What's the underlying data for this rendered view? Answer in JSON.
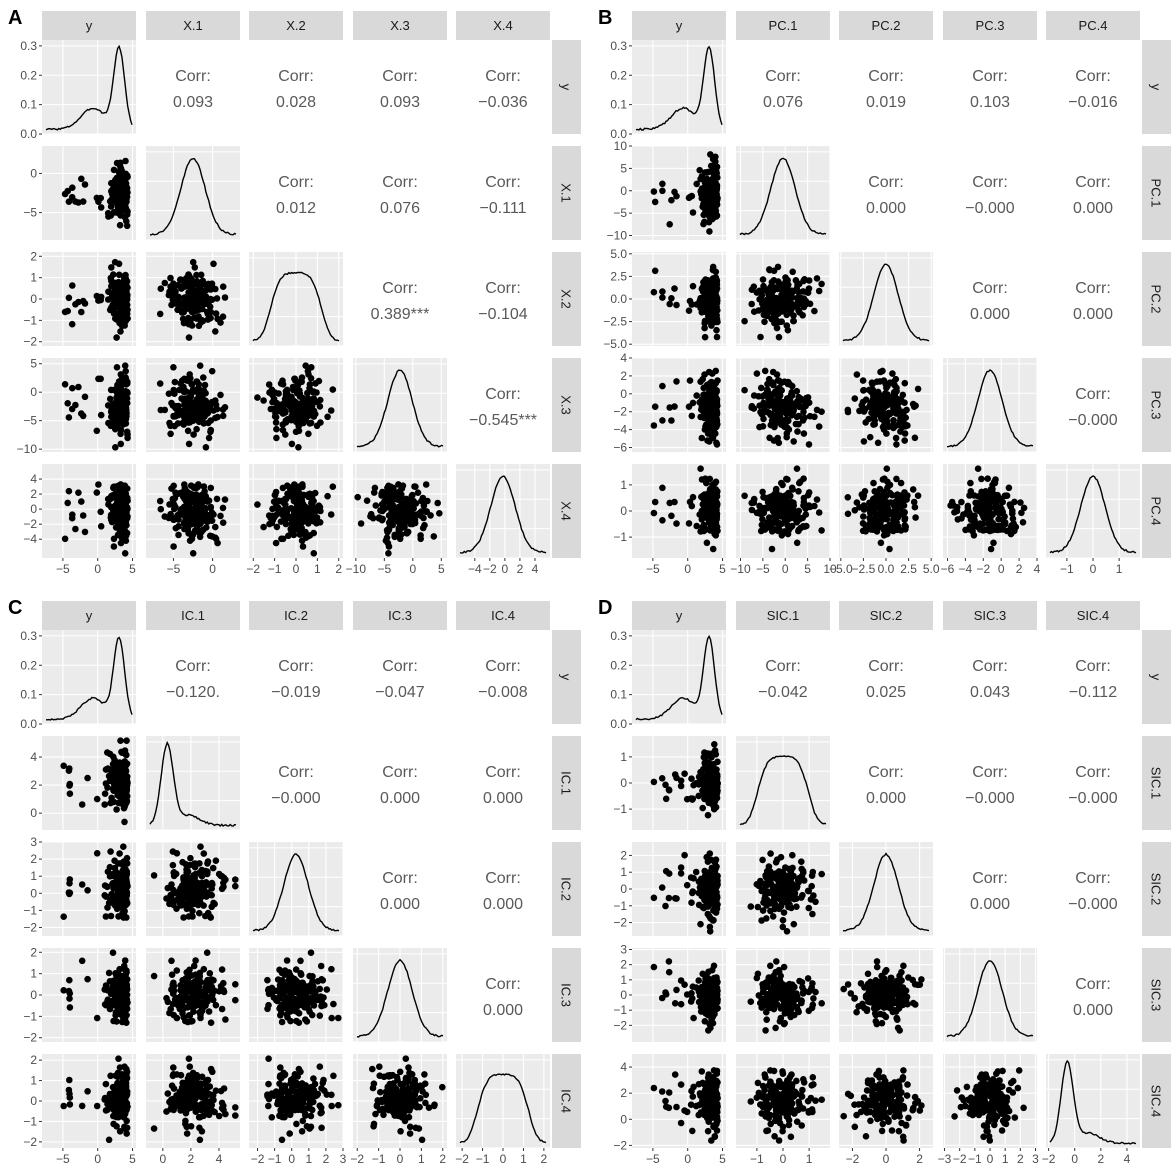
{
  "figure": {
    "background": "#ffffff",
    "panel_bg": "#ebebeb",
    "strip_bg": "#d9d9d9",
    "grid_color": "#ffffff",
    "point_color": "#000000",
    "line_color": "#000000",
    "corr_text_color": "#595959"
  },
  "chart_data": [
    {
      "type": "pairs",
      "panel_label": "A",
      "variables": [
        "y",
        "X.1",
        "X.2",
        "X.3",
        "X.4"
      ],
      "correlations": [
        [
          "",
          "0.093",
          "0.028",
          "0.093",
          "−0.036"
        ],
        [
          "",
          "",
          "0.012",
          "0.076",
          "−0.111"
        ],
        [
          "",
          "",
          "",
          "0.389***",
          "−0.104"
        ],
        [
          "",
          "",
          "",
          "",
          "−0.545***"
        ]
      ],
      "corr_label": "Corr:",
      "x_ticks": [
        [
          "−5",
          "0",
          "5"
        ],
        [
          "−5",
          "0"
        ],
        [
          "−2",
          "−1",
          "0",
          "1",
          "2"
        ],
        [
          "−10",
          "−5",
          "0",
          "5"
        ],
        [
          "−4",
          "−2",
          "0",
          "2",
          "4"
        ]
      ],
      "y_ticks": [
        [
          "0.0",
          "0.1",
          "0.2",
          "0.3"
        ],
        [
          "−5",
          "0"
        ],
        [
          "−2",
          "−1",
          "0",
          "1",
          "2"
        ],
        [
          "−10",
          "−5",
          "0",
          "5"
        ],
        [
          "−4",
          "−2",
          "0",
          "2",
          "4"
        ]
      ],
      "ranges": [
        [
          -8,
          5.5
        ],
        [
          -8.5,
          3.5
        ],
        [
          -2.2,
          2.2
        ],
        [
          -10.5,
          6
        ],
        [
          -6.5,
          6
        ]
      ],
      "diag_ylim": [
        0,
        0.32
      ]
    },
    {
      "type": "pairs",
      "panel_label": "B",
      "variables": [
        "y",
        "PC.1",
        "PC.2",
        "PC.3",
        "PC.4"
      ],
      "correlations": [
        [
          "",
          "0.076",
          "0.019",
          "0.103",
          "−0.016"
        ],
        [
          "",
          "",
          "0.000",
          "−0.000",
          "0.000"
        ],
        [
          "",
          "",
          "",
          "0.000",
          "0.000"
        ],
        [
          "",
          "",
          "",
          "",
          "−0.000"
        ]
      ],
      "corr_label": "Corr:",
      "x_ticks": [
        [
          "−5",
          "0",
          "5"
        ],
        [
          "−10",
          "−5",
          "0",
          "5",
          "10"
        ],
        [
          "−5.0",
          "−2.5",
          "0.0",
          "2.5",
          "5.0"
        ],
        [
          "−6",
          "−4",
          "−2",
          "0",
          "2",
          "4"
        ],
        [
          "−1",
          "0",
          "1"
        ]
      ],
      "y_ticks": [
        [
          "0.0",
          "0.1",
          "0.2",
          "0.3"
        ],
        [
          "−10",
          "−5",
          "0",
          "5",
          "10"
        ],
        [
          "−5.0",
          "−2.5",
          "0.0",
          "2.5",
          "5.0"
        ],
        [
          "−6",
          "−4",
          "−2",
          "0",
          "2",
          "4"
        ],
        [
          "−1",
          "0",
          "1"
        ]
      ],
      "ranges": [
        [
          -8,
          5.5
        ],
        [
          -11,
          10
        ],
        [
          -5.2,
          5.2
        ],
        [
          -6.5,
          4
        ],
        [
          -1.8,
          1.8
        ]
      ],
      "diag_ylim": [
        0,
        0.32
      ]
    },
    {
      "type": "pairs",
      "panel_label": "C",
      "variables": [
        "y",
        "IC.1",
        "IC.2",
        "IC.3",
        "IC.4"
      ],
      "correlations": [
        [
          "",
          "−0.120.",
          "−0.019",
          "−0.047",
          "−0.008"
        ],
        [
          "",
          "",
          "−0.000",
          "0.000",
          "0.000"
        ],
        [
          "",
          "",
          "",
          "0.000",
          "0.000"
        ],
        [
          "",
          "",
          "",
          "",
          "0.000"
        ]
      ],
      "corr_label": "Corr:",
      "x_ticks": [
        [
          "−5",
          "0",
          "5"
        ],
        [
          "0",
          "2",
          "4"
        ],
        [
          "−2",
          "−1",
          "0",
          "1",
          "2",
          "3"
        ],
        [
          "−2",
          "−1",
          "0",
          "1",
          "2"
        ],
        [
          "−2",
          "−1",
          "0",
          "1",
          "2"
        ]
      ],
      "y_ticks": [
        [
          "0.0",
          "0.1",
          "0.2",
          "0.3"
        ],
        [
          "0",
          "2",
          "4"
        ],
        [
          "−2",
          "−1",
          "0",
          "1",
          "2",
          "3"
        ],
        [
          "−2",
          "−1",
          "0",
          "1",
          "2"
        ],
        [
          "−2",
          "−1",
          "0",
          "1",
          "2"
        ]
      ],
      "ranges": [
        [
          -8,
          5.5
        ],
        [
          -1.2,
          5.5
        ],
        [
          -2.5,
          3
        ],
        [
          -2.2,
          2.2
        ],
        [
          -2.3,
          2.3
        ]
      ],
      "diag_ylim": [
        0,
        0.32
      ]
    },
    {
      "type": "pairs",
      "panel_label": "D",
      "variables": [
        "y",
        "SIC.1",
        "SIC.2",
        "SIC.3",
        "SIC.4"
      ],
      "correlations": [
        [
          "",
          "−0.042",
          "0.025",
          "0.043",
          "−0.112"
        ],
        [
          "",
          "",
          "0.000",
          "−0.000",
          "−0.000"
        ],
        [
          "",
          "",
          "",
          "0.000",
          "−0.000"
        ],
        [
          "",
          "",
          "",
          "",
          "0.000"
        ]
      ],
      "corr_label": "Corr:",
      "x_ticks": [
        [
          "−5",
          "0",
          "5"
        ],
        [
          "−1",
          "0",
          "1"
        ],
        [
          "−2",
          "0",
          "2"
        ],
        [
          "−3",
          "−2",
          "−1",
          "0",
          "1",
          "2",
          "3"
        ],
        [
          "−2",
          "0",
          "2",
          "4"
        ]
      ],
      "y_ticks": [
        [
          "0.0",
          "0.1",
          "0.2",
          "0.3"
        ],
        [
          "−1",
          "0",
          "1"
        ],
        [
          "−2",
          "−1",
          "0",
          "1",
          "2"
        ],
        [
          "−2",
          "−1",
          "0",
          "1",
          "2",
          "3"
        ],
        [
          "−2",
          "0",
          "2",
          "4"
        ]
      ],
      "ranges": [
        [
          -8,
          5.5
        ],
        [
          -1.8,
          1.8
        ],
        [
          -2.8,
          2.8
        ],
        [
          -3.1,
          3.1
        ],
        [
          -2.2,
          5
        ]
      ],
      "diag_ylim": [
        0,
        0.32
      ]
    }
  ]
}
